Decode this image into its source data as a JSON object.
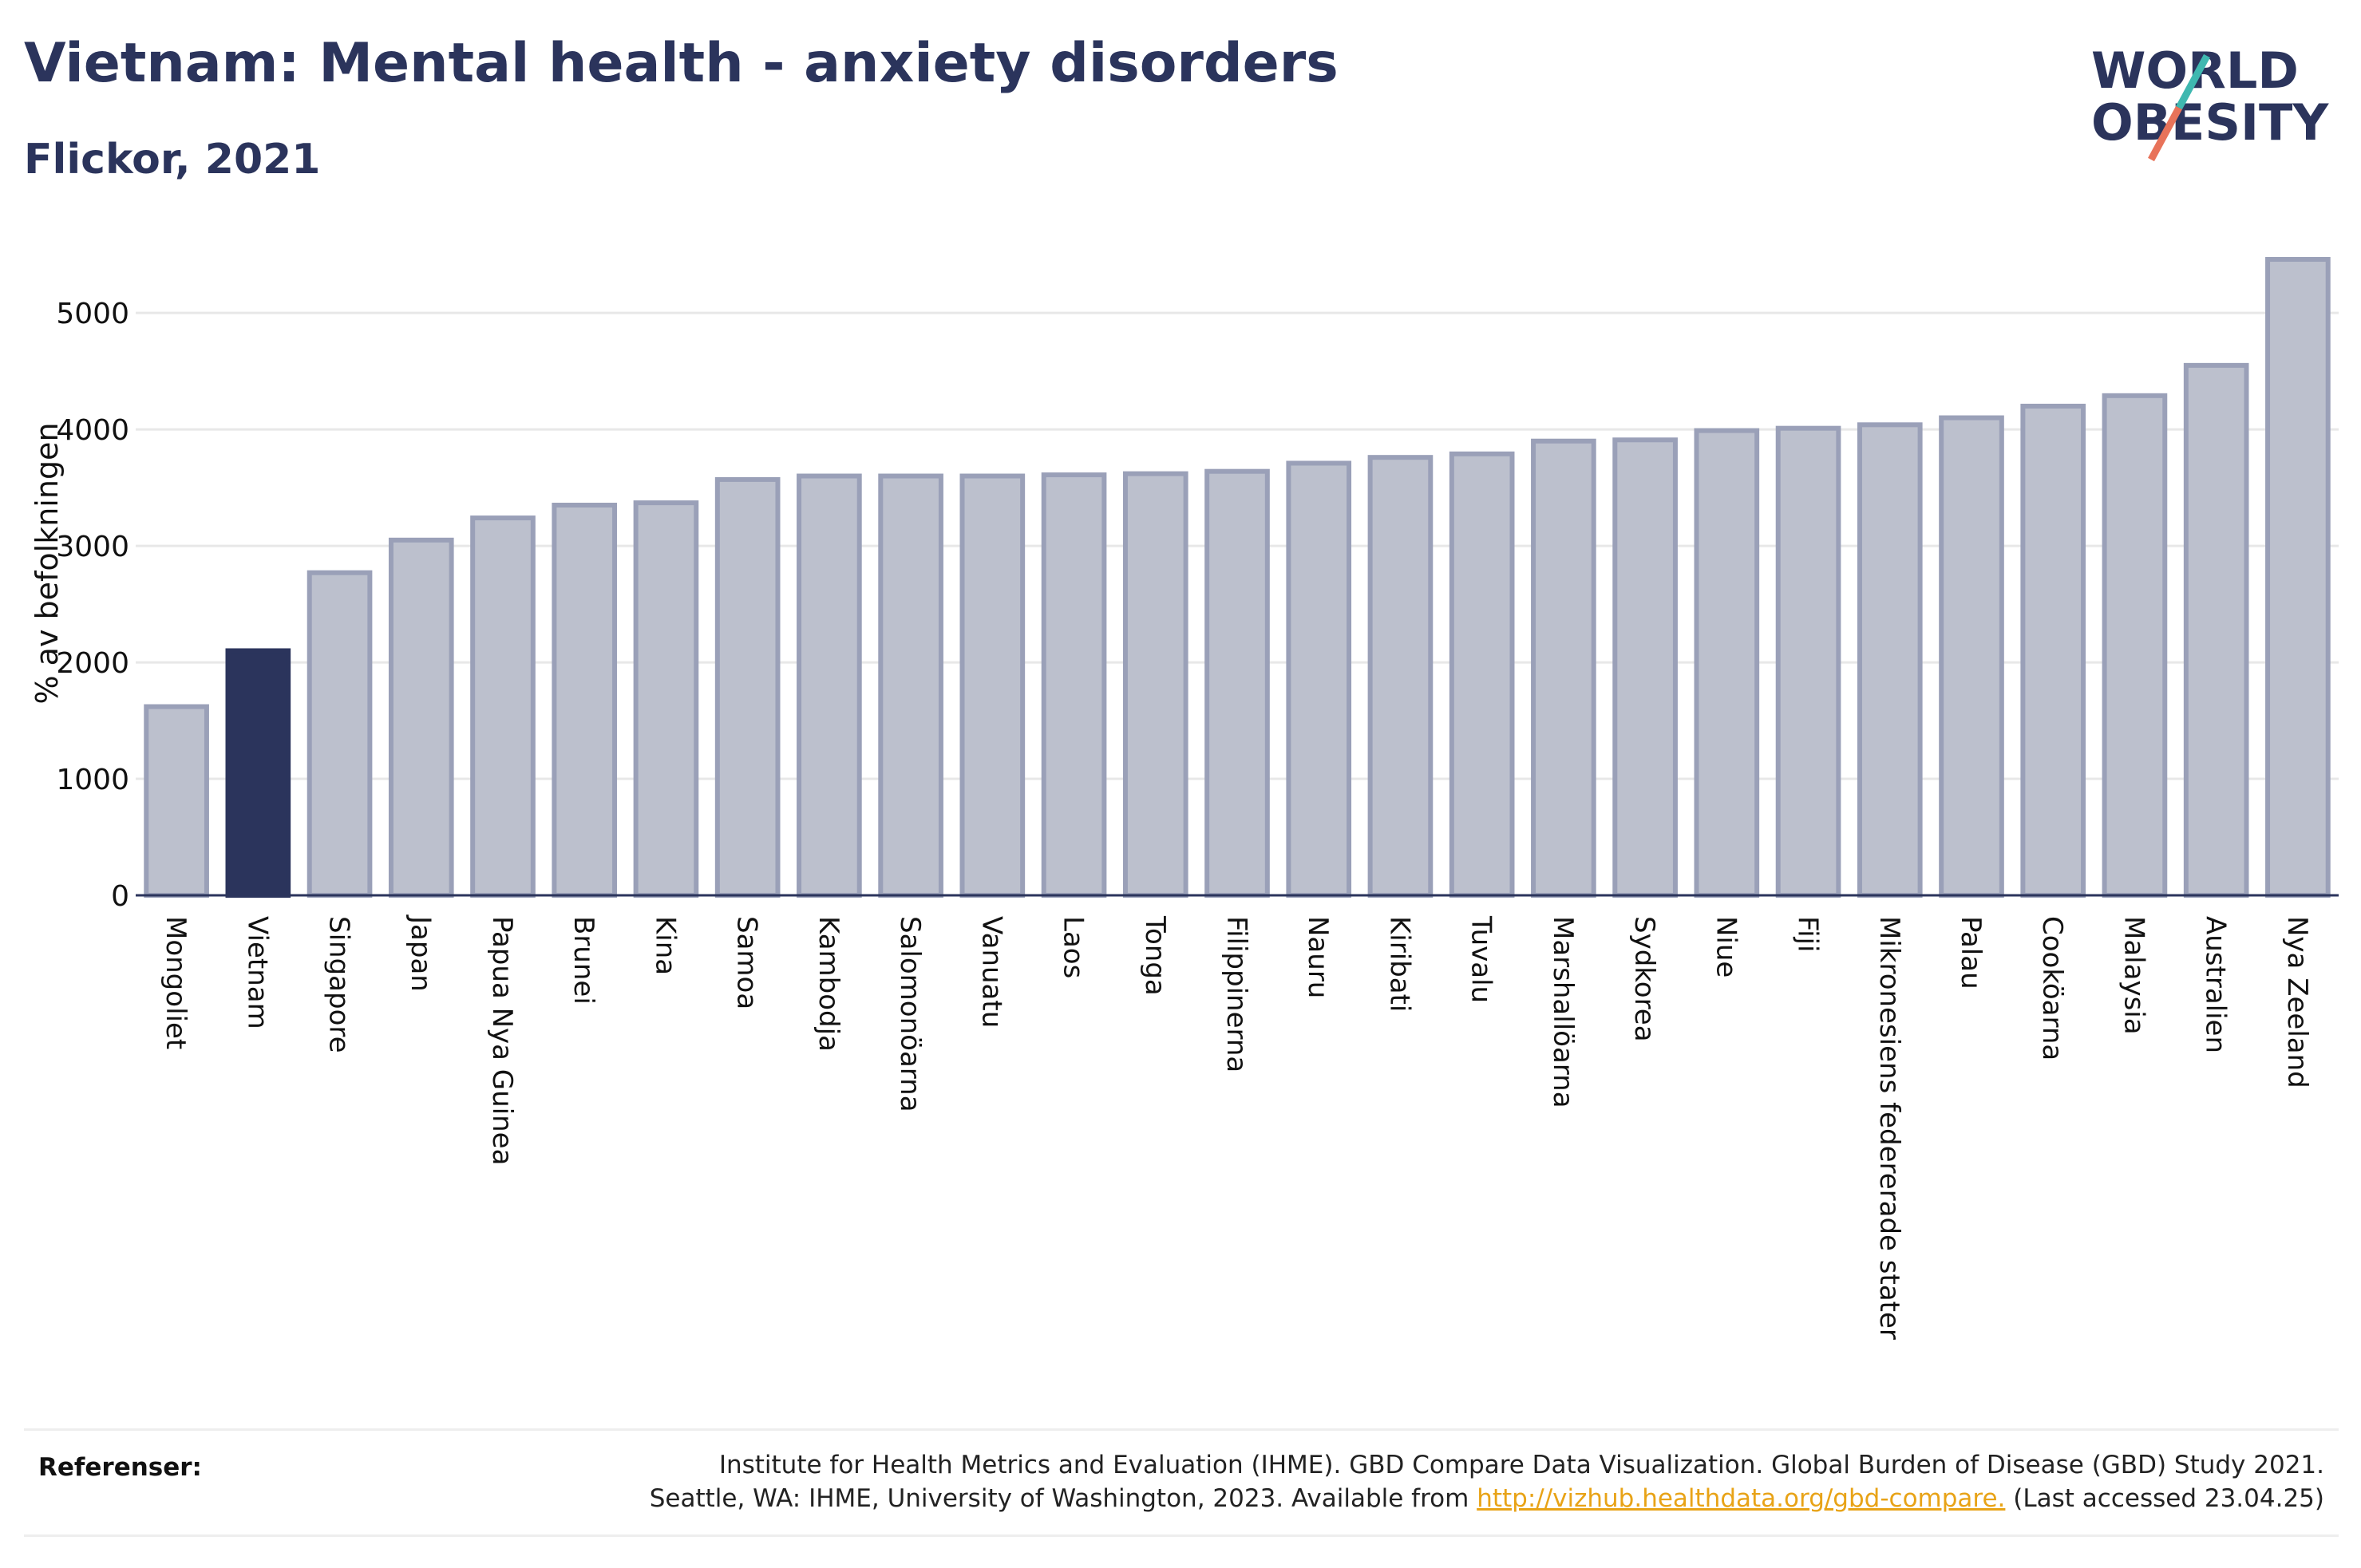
{
  "header": {
    "title": "Vietnam: Mental health - anxiety disorders",
    "subtitle": "Flickor, 2021"
  },
  "logo": {
    "line1": "WORLD",
    "line2": "OBESITY"
  },
  "chart_data": {
    "type": "bar",
    "title": "Vietnam: Mental health - anxiety disorders",
    "subtitle": "Flickor, 2021",
    "ylabel": "% av befolkningen",
    "xlabel": "",
    "ylim": [
      0,
      5700
    ],
    "yticks": [
      0,
      1000,
      2000,
      3000,
      4000,
      5000
    ],
    "grid": true,
    "highlight": "Vietnam",
    "colors": {
      "bar": "#bcc0cd",
      "bar_edge": "#9aa0b8",
      "highlight": "#2b345c"
    },
    "categories": [
      "Mongoliet",
      "Vietnam",
      "Singapore",
      "Japan",
      "Papua Nya Guinea",
      "Brunei",
      "Kina",
      "Samoa",
      "Kambodja",
      "Salomonöarna",
      "Vanuatu",
      "Laos",
      "Tonga",
      "Filippinerna",
      "Nauru",
      "Kiribati",
      "Tuvalu",
      "Marshallöarna",
      "Sydkorea",
      "Niue",
      "Fiji",
      "Mikronesiens federerade stater",
      "Palau",
      "Cooköarna",
      "Malaysia",
      "Australien",
      "Nya Zeeland"
    ],
    "values": [
      1620,
      2100,
      2770,
      3050,
      3240,
      3350,
      3370,
      3570,
      3600,
      3600,
      3600,
      3610,
      3620,
      3640,
      3710,
      3760,
      3790,
      3900,
      3910,
      3990,
      4010,
      4040,
      4100,
      4200,
      4290,
      4550,
      5460
    ]
  },
  "references": {
    "label": "Referenser:",
    "line1": "Institute for Health Metrics and Evaluation (IHME). GBD Compare Data Visualization. Global Burden of Disease (GBD) Study 2021.",
    "line2_prefix": "Seattle, WA: IHME, University of Washington, 2023. Available from ",
    "link": "http://vizhub.healthdata.org/gbd-compare.",
    "line2_suffix": " (Last accessed 23.04.25)"
  }
}
